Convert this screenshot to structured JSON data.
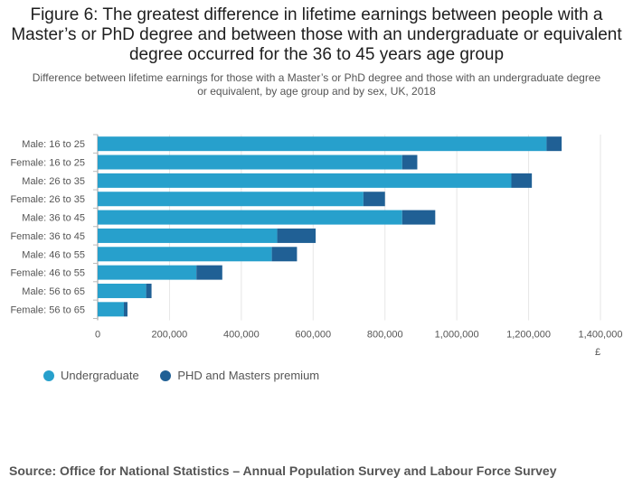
{
  "title": "Figure 6: The greatest difference in lifetime earnings between people with a Master’s or PhD degree and between those with an undergraduate or equivalent degree occurred for the 36 to 45 years age group",
  "subtitle": "Difference between lifetime earnings for those with a Master’s or PhD degree and those with an undergraduate degree or equivalent, by age group and by sex, UK, 2018",
  "source": "Source: Office for National Statistics – Annual Population Survey and Labour Force Survey",
  "colors": {
    "undergraduate": "#27a0cc",
    "premium": "#206095"
  },
  "chart_data": {
    "type": "bar",
    "orientation": "horizontal",
    "stacked": true,
    "categories": [
      "Male: 16 to 25",
      "Female: 16 to 25",
      "Male: 26 to 35",
      "Female: 26 to 35",
      "Male: 36 to 45",
      "Female: 36 to 45",
      "Male: 46 to 55",
      "Female: 46 to 55",
      "Male: 56 to 65",
      "Female: 56 to 65"
    ],
    "series": [
      {
        "name": "Undergraduate",
        "values": [
          1250000,
          848000,
          1152000,
          740000,
          848000,
          500000,
          485000,
          275000,
          135000,
          73000
        ]
      },
      {
        "name": "PHD and Masters premium",
        "values": [
          42000,
          42000,
          57000,
          60000,
          92000,
          107000,
          70000,
          72000,
          15000,
          10000
        ]
      }
    ],
    "xlim": [
      0,
      1400000
    ],
    "xticks": [
      0,
      200000,
      400000,
      600000,
      800000,
      1000000,
      1200000,
      1400000
    ],
    "xtick_labels": [
      "0",
      "200,000",
      "400,000",
      "600,000",
      "800,000",
      "1,000,000",
      "1,200,000",
      "1,400,000"
    ],
    "xlabel": "£",
    "legend_position": "bottom-left"
  }
}
